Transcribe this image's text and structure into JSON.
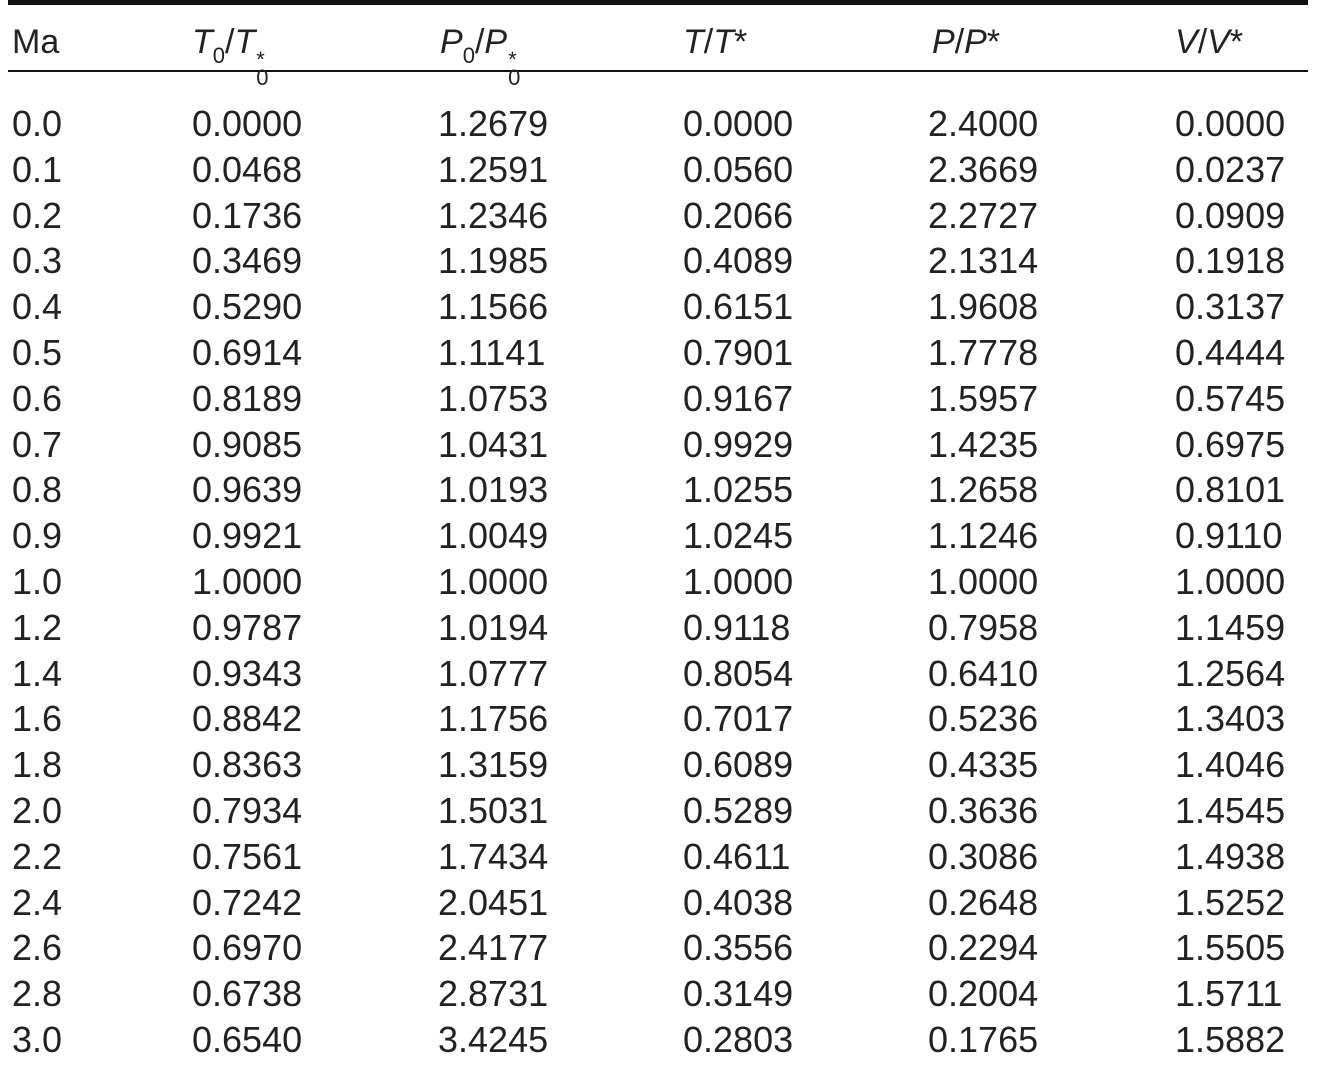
{
  "table": {
    "headers": [
      [
        "Ma"
      ],
      [
        "T",
        "0",
        "/",
        "T",
        "*",
        "0"
      ],
      [
        "P",
        "0",
        "/",
        "P",
        "*",
        "0"
      ],
      [
        "T",
        "/",
        "T",
        "*"
      ],
      [
        "P",
        "/",
        "P",
        "*"
      ],
      [
        "V",
        "/",
        "V",
        "*"
      ]
    ],
    "rows": [
      [
        "0.0",
        "0.0000",
        "1.2679",
        "0.0000",
        "2.4000",
        "0.0000"
      ],
      [
        "0.1",
        "0.0468",
        "1.2591",
        "0.0560",
        "2.3669",
        "0.0237"
      ],
      [
        "0.2",
        "0.1736",
        "1.2346",
        "0.2066",
        "2.2727",
        "0.0909"
      ],
      [
        "0.3",
        "0.3469",
        "1.1985",
        "0.4089",
        "2.1314",
        "0.1918"
      ],
      [
        "0.4",
        "0.5290",
        "1.1566",
        "0.6151",
        "1.9608",
        "0.3137"
      ],
      [
        "0.5",
        "0.6914",
        "1.1141",
        "0.7901",
        "1.7778",
        "0.4444"
      ],
      [
        "0.6",
        "0.8189",
        "1.0753",
        "0.9167",
        "1.5957",
        "0.5745"
      ],
      [
        "0.7",
        "0.9085",
        "1.0431",
        "0.9929",
        "1.4235",
        "0.6975"
      ],
      [
        "0.8",
        "0.9639",
        "1.0193",
        "1.0255",
        "1.2658",
        "0.8101"
      ],
      [
        "0.9",
        "0.9921",
        "1.0049",
        "1.0245",
        "1.1246",
        "0.9110"
      ],
      [
        "1.0",
        "1.0000",
        "1.0000",
        "1.0000",
        "1.0000",
        "1.0000"
      ],
      [
        "1.2",
        "0.9787",
        "1.0194",
        "0.9118",
        "0.7958",
        "1.1459"
      ],
      [
        "1.4",
        "0.9343",
        "1.0777",
        "0.8054",
        "0.6410",
        "1.2564"
      ],
      [
        "1.6",
        "0.8842",
        "1.1756",
        "0.7017",
        "0.5236",
        "1.3403"
      ],
      [
        "1.8",
        "0.8363",
        "1.3159",
        "0.6089",
        "0.4335",
        "1.4046"
      ],
      [
        "2.0",
        "0.7934",
        "1.5031",
        "0.5289",
        "0.3636",
        "1.4545"
      ],
      [
        "2.2",
        "0.7561",
        "1.7434",
        "0.4611",
        "0.3086",
        "1.4938"
      ],
      [
        "2.4",
        "0.7242",
        "2.0451",
        "0.4038",
        "0.2648",
        "1.5252"
      ],
      [
        "2.6",
        "0.6970",
        "2.4177",
        "0.3556",
        "0.2294",
        "1.5505"
      ],
      [
        "2.8",
        "0.6738",
        "2.8731",
        "0.3149",
        "0.2004",
        "1.5711"
      ],
      [
        "3.0",
        "0.6540",
        "3.4245",
        "0.2803",
        "0.1765",
        "1.5882"
      ]
    ]
  }
}
